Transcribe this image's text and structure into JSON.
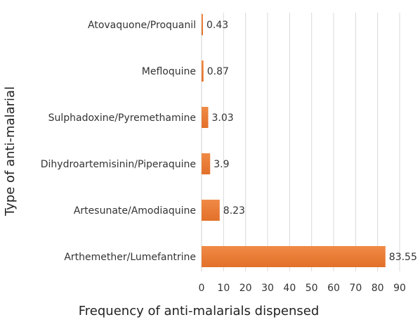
{
  "chart_data": {
    "type": "bar",
    "orientation": "horizontal",
    "categories": [
      "Atovaquone/Proquanil",
      "Mefloquine",
      "Sulphadoxine/Pyremethamine",
      "Dihydroartemisinin/Piperaquine",
      "Artesunate/Amodiaquine",
      "Arthemether/Lumefantrine"
    ],
    "values": [
      0.43,
      0.87,
      3.03,
      3.9,
      8.23,
      83.55
    ],
    "value_labels": [
      "0.43",
      "0.87",
      "3.03",
      "3.9",
      "8.23",
      "83.55"
    ],
    "xlabel": "Frequency of anti-malarials dispensed",
    "ylabel": "Type of anti-malarial",
    "xlim": [
      0,
      90
    ],
    "xticks": [
      0,
      10,
      20,
      30,
      40,
      50,
      60,
      70,
      80,
      90
    ],
    "grid": true,
    "bar_color": "#ED7D31",
    "legend": "none"
  }
}
